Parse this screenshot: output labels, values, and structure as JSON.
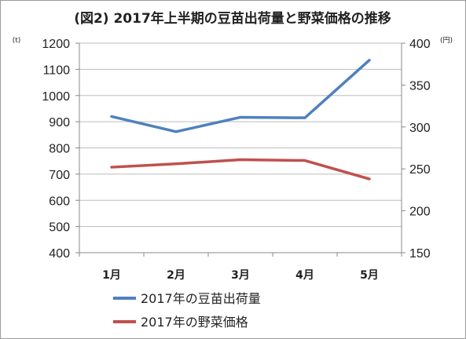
{
  "chart_data": {
    "type": "line",
    "title": "(図2) 2017年上半期の豆苗出荷量と野菜価格の推移",
    "categories": [
      "1月",
      "2月",
      "3月",
      "4月",
      "5月"
    ],
    "y_left": {
      "unit": "(t)",
      "min": 400,
      "max": 1200,
      "step": 100
    },
    "y_right": {
      "unit": "(円)",
      "min": 150,
      "max": 400,
      "step": 50
    },
    "grid": "horizontal",
    "legend_position": "bottom",
    "series": [
      {
        "name": "2017年の豆苗出荷量",
        "axis": "left",
        "color": "#4f81bd",
        "values": [
          920,
          862,
          917,
          915,
          1135
        ]
      },
      {
        "name": "2017年の野菜価格",
        "axis": "right",
        "color": "#c0504d",
        "values": [
          252,
          256,
          261,
          260,
          238
        ]
      }
    ]
  }
}
